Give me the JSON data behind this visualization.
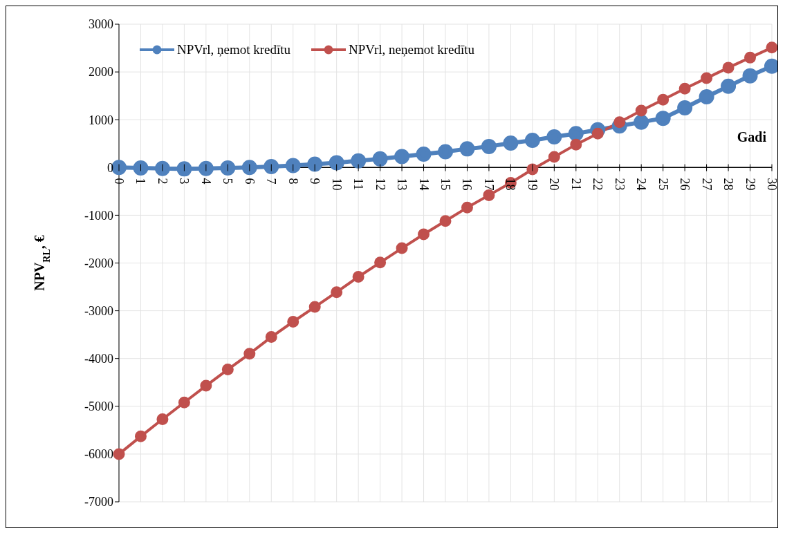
{
  "chart_data": {
    "type": "line",
    "xlabel": "Gadi",
    "ylabel": "NPV$_{RL}$, €",
    "categories": [
      "0",
      "1",
      "2",
      "3",
      "4",
      "5",
      "6",
      "7",
      "8",
      "9",
      "10",
      "11",
      "12",
      "13",
      "14",
      "15",
      "16",
      "17",
      "18",
      "19",
      "20",
      "21",
      "22",
      "23",
      "24",
      "25",
      "26",
      "27",
      "28",
      "29",
      "30"
    ],
    "series": [
      {
        "name": "NPVrl, ņemot kredītu",
        "color": "#4f81bd",
        "values": [
          0,
          -10,
          -20,
          -30,
          -20,
          -10,
          0,
          20,
          40,
          70,
          100,
          140,
          180,
          230,
          280,
          330,
          390,
          440,
          510,
          570,
          640,
          710,
          790,
          870,
          950,
          1030,
          1250,
          1480,
          1700,
          1920,
          2120
        ]
      },
      {
        "name": "NPVrl, neņemot kredītu",
        "color": "#c0504d",
        "values": [
          -6000,
          -5630,
          -5270,
          -4920,
          -4570,
          -4230,
          -3900,
          -3550,
          -3230,
          -2920,
          -2610,
          -2290,
          -1990,
          -1690,
          -1400,
          -1120,
          -840,
          -580,
          -320,
          -40,
          220,
          480,
          710,
          950,
          1190,
          1420,
          1650,
          1870,
          2090,
          2300,
          2510
        ]
      }
    ],
    "ylim": [
      -7000,
      3000
    ],
    "yticks": [
      -7000,
      -6000,
      -5000,
      -4000,
      -3000,
      -2000,
      -1000,
      0,
      1000,
      2000,
      3000
    ],
    "grid": true,
    "legend": "top left",
    "marker": "circle",
    "line_style": "solid"
  }
}
